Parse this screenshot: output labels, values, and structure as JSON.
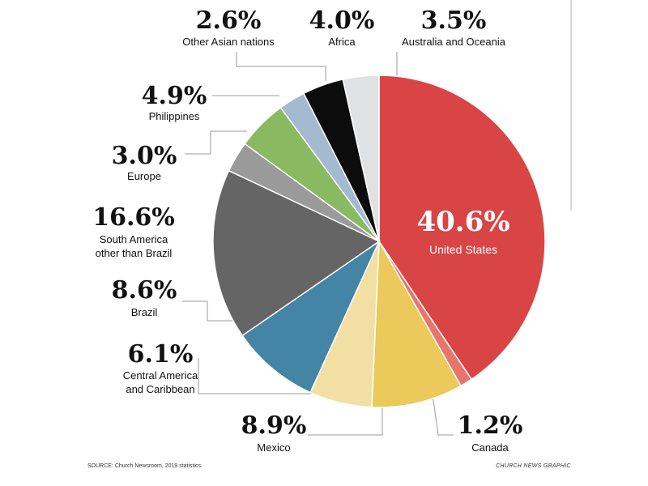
{
  "chart_data": {
    "type": "pie",
    "start_angle_deg": 0,
    "direction": "clockwise",
    "slices": [
      {
        "label": "United States",
        "pct_text": "40.6%",
        "value": 40.6,
        "color": "#d94545"
      },
      {
        "label": "Canada",
        "pct_text": "1.2%",
        "value": 1.2,
        "color": "#e8756c"
      },
      {
        "label": "Mexico",
        "pct_text": "8.9%",
        "value": 8.9,
        "color": "#ebc95a"
      },
      {
        "label": "Central America and Caribbean",
        "lines": [
          "Central America",
          "and Caribbean"
        ],
        "pct_text": "6.1%",
        "value": 6.1,
        "color": "#f2dfa3"
      },
      {
        "label": "Brazil",
        "pct_text": "8.6%",
        "value": 8.6,
        "color": "#4484a4"
      },
      {
        "label": "South America other than Brazil",
        "lines": [
          "South America",
          "other than Brazil"
        ],
        "pct_text": "16.6%",
        "value": 16.6,
        "color": "#656565"
      },
      {
        "label": "Europe",
        "pct_text": "3.0%",
        "value": 3.0,
        "color": "#9a9a9a"
      },
      {
        "label": "Philippines",
        "pct_text": "4.9%",
        "value": 4.9,
        "color": "#89b961"
      },
      {
        "label": "Other Asian nations",
        "pct_text": "2.6%",
        "value": 2.6,
        "color": "#a3bad0"
      },
      {
        "label": "Africa",
        "pct_text": "4.0%",
        "value": 4.0,
        "color": "#0c0c0c"
      },
      {
        "label": "Australia and Oceania",
        "pct_text": "3.5%",
        "value": 3.5,
        "color": "#dfe1e3"
      }
    ]
  },
  "footer": {
    "source": "SOURCE: Church Newsroom, 2019 statistics",
    "credit": "CHURCH NEWS GRAPHIC"
  }
}
